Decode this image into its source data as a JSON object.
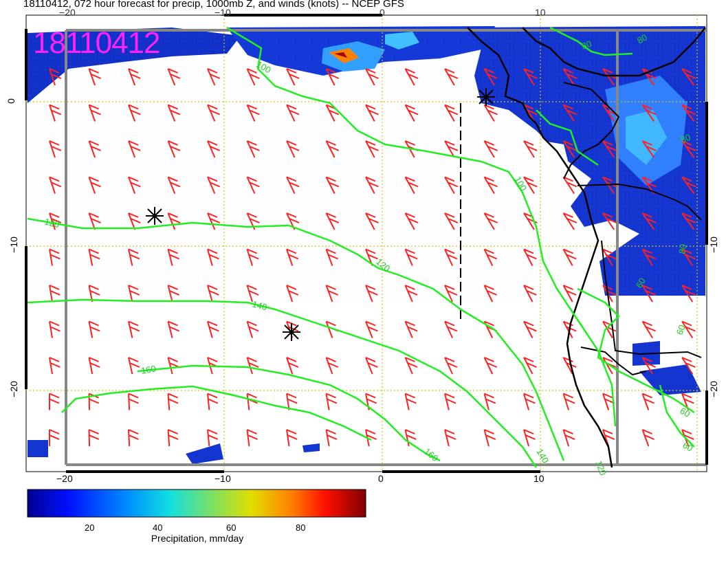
{
  "header": {
    "title": "18110412, 072 hour forecast for precip, 1000mb Z, and winds (knots) -- NCEP GFS",
    "stamp": "18110412"
  },
  "axes": {
    "x_ticks": [
      "−20",
      "−10",
      "0",
      "10"
    ],
    "y_ticks": [
      "0",
      "−10",
      "−20"
    ],
    "y_ticks_right": [
      "−10",
      "−20"
    ]
  },
  "contours": {
    "labels": [
      "100",
      "100",
      "120",
      "120",
      "140",
      "160",
      "160",
      "140",
      "120",
      "80",
      "80",
      "80",
      "60",
      "60",
      "60",
      "60",
      "80"
    ],
    "color": "#22ee22"
  },
  "colorbar": {
    "ticks": [
      "20",
      "40",
      "60",
      "80"
    ],
    "label": "Precipitation, mm/day",
    "range": [
      0,
      100
    ]
  },
  "colors": {
    "wind_barbs": "#ff2020",
    "coast": "#000000",
    "grid": "#d6c400",
    "stamp": "#ff22ff"
  },
  "icons": {
    "pressure_center_marks": "asterisk-icon"
  }
}
